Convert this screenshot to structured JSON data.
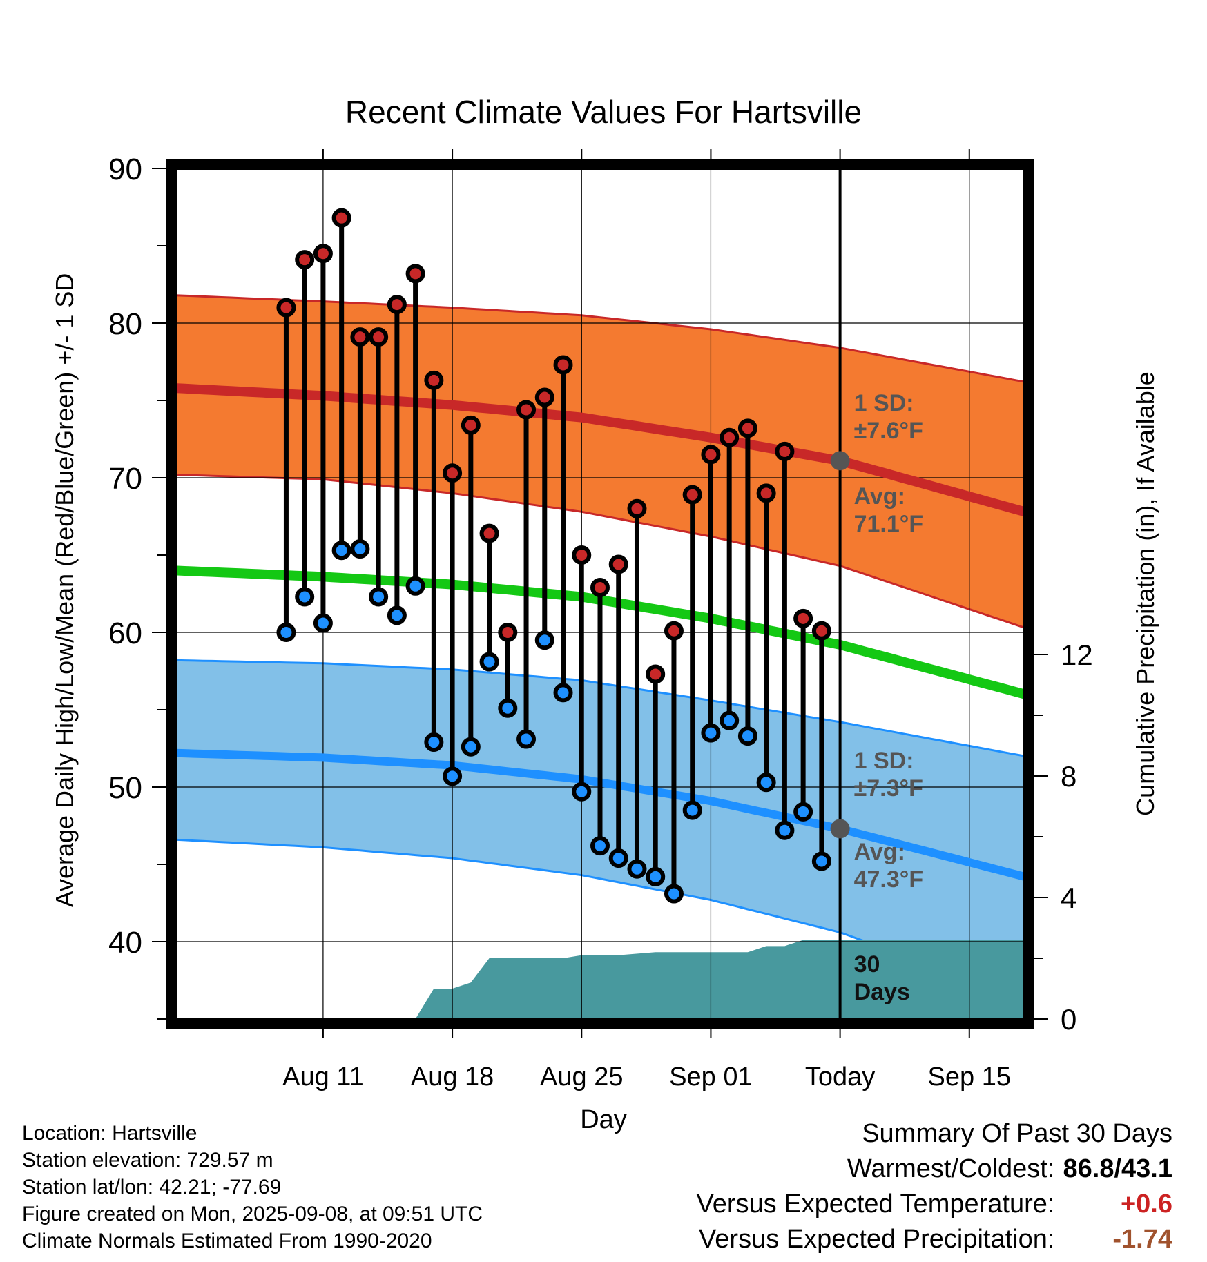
{
  "chart_data": {
    "type": "line",
    "title": "Recent Climate Values For Hartsville",
    "xlabel": "Day",
    "ylabel": "Average Daily High/Low/Mean (Red/Blue/Green) +/- 1 SD",
    "y2label": "Cumulative Precipitation (in), If Available",
    "ylim": [
      35,
      90
    ],
    "y2lim": [
      0,
      28
    ],
    "xlim_days": [
      -36,
      10
    ],
    "x_ticks": [
      {
        "day": -28,
        "label": "Aug 11"
      },
      {
        "day": -21,
        "label": "Aug 18"
      },
      {
        "day": -14,
        "label": "Aug 25"
      },
      {
        "day": -7,
        "label": "Sep 01"
      },
      {
        "day": 0,
        "label": "Today"
      },
      {
        "day": 7,
        "label": "Sep 15"
      }
    ],
    "y_ticks": [
      40,
      50,
      60,
      70,
      80,
      90
    ],
    "y2_ticks": [
      0,
      4,
      8,
      12
    ],
    "grid": true,
    "observed_days": [
      -30,
      -29,
      -28,
      -27,
      -26,
      -25,
      -24,
      -23,
      -22,
      -21,
      -20,
      -19,
      -18,
      -17,
      -16,
      -15,
      -14,
      -13,
      -12,
      -11,
      -10,
      -9,
      -8,
      -7,
      -6,
      -5,
      -4,
      -3,
      -2,
      -1
    ],
    "series": [
      {
        "name": "High",
        "color": "#c82828",
        "values": [
          81.0,
          84.1,
          84.5,
          86.8,
          79.1,
          79.1,
          81.2,
          83.2,
          76.3,
          70.3,
          73.4,
          66.4,
          60.0,
          74.4,
          75.2,
          77.3,
          65.0,
          62.9,
          64.4,
          68.0,
          57.3,
          60.1,
          68.9,
          71.5,
          72.6,
          73.2,
          69.0,
          71.7,
          60.9,
          60.1
        ]
      },
      {
        "name": "Low",
        "color": "#1e90ff",
        "values": [
          60.0,
          62.3,
          60.6,
          65.3,
          65.4,
          62.3,
          61.1,
          63.0,
          52.9,
          50.7,
          52.6,
          58.1,
          55.1,
          53.1,
          59.5,
          56.1,
          49.7,
          46.2,
          45.4,
          44.7,
          44.2,
          43.1,
          48.5,
          53.5,
          54.3,
          53.3,
          50.3,
          47.2,
          48.4,
          45.2
        ]
      }
    ],
    "normal_high": {
      "days": [
        -36,
        -28,
        -21,
        -14,
        -7,
        0,
        10
      ],
      "values": [
        75.8,
        75.3,
        74.7,
        73.9,
        72.6,
        71.1,
        67.8
      ]
    },
    "normal_high_sd_band": {
      "upper": [
        81.8,
        81.4,
        81.0,
        80.5,
        79.6,
        78.4,
        76.2
      ],
      "lower": [
        70.2,
        69.9,
        69.0,
        67.8,
        66.2,
        64.3,
        60.3
      ]
    },
    "normal_mean": {
      "days": [
        -36,
        -28,
        -21,
        -14,
        -7,
        0,
        10
      ],
      "values": [
        64.0,
        63.6,
        63.1,
        62.3,
        60.9,
        59.2,
        56.0
      ]
    },
    "normal_low": {
      "days": [
        -36,
        -28,
        -21,
        -14,
        -7,
        0,
        10
      ],
      "values": [
        52.2,
        51.9,
        51.4,
        50.5,
        49.1,
        47.3,
        44.2
      ]
    },
    "normal_low_sd_band": {
      "upper": [
        58.2,
        58.0,
        57.6,
        56.9,
        55.6,
        54.2,
        52.0
      ],
      "lower": [
        46.6,
        46.1,
        45.4,
        44.3,
        42.7,
        40.6,
        36.3
      ]
    },
    "precip_cumulative": {
      "days": [
        -36,
        -23,
        -22,
        -21,
        -20,
        -19,
        -18,
        -17,
        -15,
        -14,
        -12,
        -10,
        -7,
        -5,
        -4,
        -3,
        -2,
        0,
        10
      ],
      "values": [
        0,
        0,
        1.0,
        1.0,
        1.2,
        2.0,
        2.0,
        2.0,
        2.0,
        2.1,
        2.1,
        2.2,
        2.2,
        2.2,
        2.4,
        2.4,
        2.6,
        2.6,
        2.6
      ]
    },
    "annotations": {
      "high_sd": [
        "1 SD:",
        "±7.6°F"
      ],
      "high_avg": [
        "Avg:",
        "71.1°F"
      ],
      "low_sd": [
        "1 SD:",
        "±7.3°F"
      ],
      "low_avg": [
        "Avg:",
        "47.3°F"
      ],
      "window": [
        "30",
        "Days"
      ]
    },
    "colors": {
      "high_band": "#f47a30",
      "high_line": "#c82828",
      "mean_line": "#14c814",
      "low_band": "#82c0e8",
      "low_line": "#1e90ff",
      "precip": "#48999e",
      "annotation": "#555555"
    }
  },
  "metadata": {
    "location": "Location: Hartsville",
    "elevation": "Station elevation: 729.57 m",
    "latlon": "Station lat/lon: 42.21; -77.69",
    "created": "Figure created on Mon, 2025-09-08, at 09:51 UTC",
    "normals": "Climate Normals Estimated From 1990-2020"
  },
  "summary": {
    "title": "Summary Of Past 30 Days",
    "warmest_label": "Warmest/Coldest:",
    "warmest_value": "86.8/43.1",
    "temp_label": "Versus Expected Temperature:",
    "temp_value": "+0.6",
    "temp_color": "#cc2222",
    "precip_label": "Versus Expected Precipitation:",
    "precip_value": "-1.74",
    "precip_color": "#a0522d"
  }
}
